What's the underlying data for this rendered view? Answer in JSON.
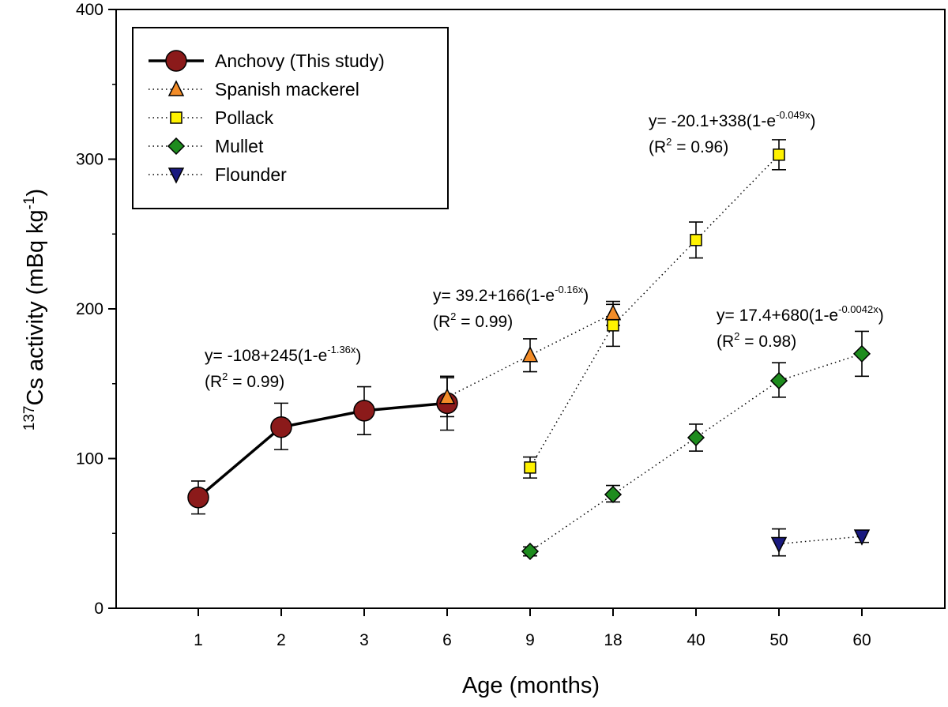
{
  "chart_data": {
    "type": "scatter",
    "xlabel": "Age (months)",
    "ylabel_parts": {
      "superscript": "137",
      "main": "Cs activity (mBq kg",
      "unit_superscript": "-1",
      "close": ")"
    },
    "ylim": [
      0,
      400
    ],
    "yticks": [
      0,
      100,
      200,
      300,
      400
    ],
    "categories": [
      "1",
      "2",
      "3",
      "6",
      "9",
      "18",
      "40",
      "50",
      "60"
    ],
    "legend": [
      {
        "label": "Anchovy (This study)",
        "series": "anchovy"
      },
      {
        "label": "Spanish mackerel",
        "series": "mackerel"
      },
      {
        "label": "Pollack",
        "series": "pollack"
      },
      {
        "label": "Mullet",
        "series": "mullet"
      },
      {
        "label": "Flounder",
        "series": "flounder"
      }
    ],
    "series": [
      {
        "key": "anchovy",
        "name": "Anchovy (This study)",
        "marker": "circle",
        "color": "#8B1A1A",
        "line": "solid",
        "points": [
          {
            "x": "1",
            "y": 74,
            "lo": 63,
            "hi": 85
          },
          {
            "x": "2",
            "y": 121,
            "lo": 106,
            "hi": 137
          },
          {
            "x": "3",
            "y": 132,
            "lo": 116,
            "hi": 148
          },
          {
            "x": "6",
            "y": 137,
            "lo": 119,
            "hi": 155
          }
        ]
      },
      {
        "key": "mackerel",
        "name": "Spanish mackerel",
        "marker": "triangle-up",
        "color": "#F28C28",
        "line": "dotted",
        "points": [
          {
            "x": "6",
            "y": 141,
            "lo": 128,
            "hi": 154
          },
          {
            "x": "9",
            "y": 169,
            "lo": 158,
            "hi": 180
          },
          {
            "x": "18",
            "y": 197,
            "lo": 189,
            "hi": 205
          }
        ]
      },
      {
        "key": "pollack",
        "name": "Pollack",
        "marker": "square",
        "color": "#FFF200",
        "line": "dotted",
        "points": [
          {
            "x": "9",
            "y": 94,
            "lo": 87,
            "hi": 101
          },
          {
            "x": "18",
            "y": 189,
            "lo": 175,
            "hi": 203
          },
          {
            "x": "40",
            "y": 246,
            "lo": 234,
            "hi": 258
          },
          {
            "x": "50",
            "y": 303,
            "lo": 293,
            "hi": 313
          }
        ]
      },
      {
        "key": "mullet",
        "name": "Mullet",
        "marker": "diamond",
        "color": "#1E8C1E",
        "line": "dotted",
        "points": [
          {
            "x": "9",
            "y": 38,
            "lo": 35,
            "hi": 41
          },
          {
            "x": "18",
            "y": 76,
            "lo": 71,
            "hi": 82
          },
          {
            "x": "40",
            "y": 114,
            "lo": 105,
            "hi": 123
          },
          {
            "x": "50",
            "y": 152,
            "lo": 141,
            "hi": 164
          },
          {
            "x": "60",
            "y": 170,
            "lo": 155,
            "hi": 185
          }
        ]
      },
      {
        "key": "flounder",
        "name": "Flounder",
        "marker": "triangle-down",
        "color": "#1A1A80",
        "line": "dotted",
        "points": [
          {
            "x": "50",
            "y": 43,
            "lo": 35,
            "hi": 53
          },
          {
            "x": "60",
            "y": 48,
            "lo": 44,
            "hi": 52
          }
        ]
      }
    ],
    "annotations": [
      {
        "prefix": "y= -108+245(1-e",
        "exp": "-1.36x",
        "suffix": ")",
        "r2_pre": "(R",
        "r2_sup": "2",
        "r2_post": " = 0.99)"
      },
      {
        "prefix": "y= 39.2+166(1-e",
        "exp": "-0.16x",
        "suffix": ")",
        "r2_pre": "(R",
        "r2_sup": "2",
        "r2_post": " = 0.99)"
      },
      {
        "prefix": "y= -20.1+338(1-e",
        "exp": "-0.049x",
        "suffix": ")",
        "r2_pre": "(R",
        "r2_sup": "2",
        "r2_post": " = 0.96)"
      },
      {
        "prefix": "y= 17.4+680(1-e",
        "exp": "-0.0042x",
        "suffix": ")",
        "r2_pre": "(R",
        "r2_sup": "2",
        "r2_post": " = 0.98)"
      }
    ]
  }
}
